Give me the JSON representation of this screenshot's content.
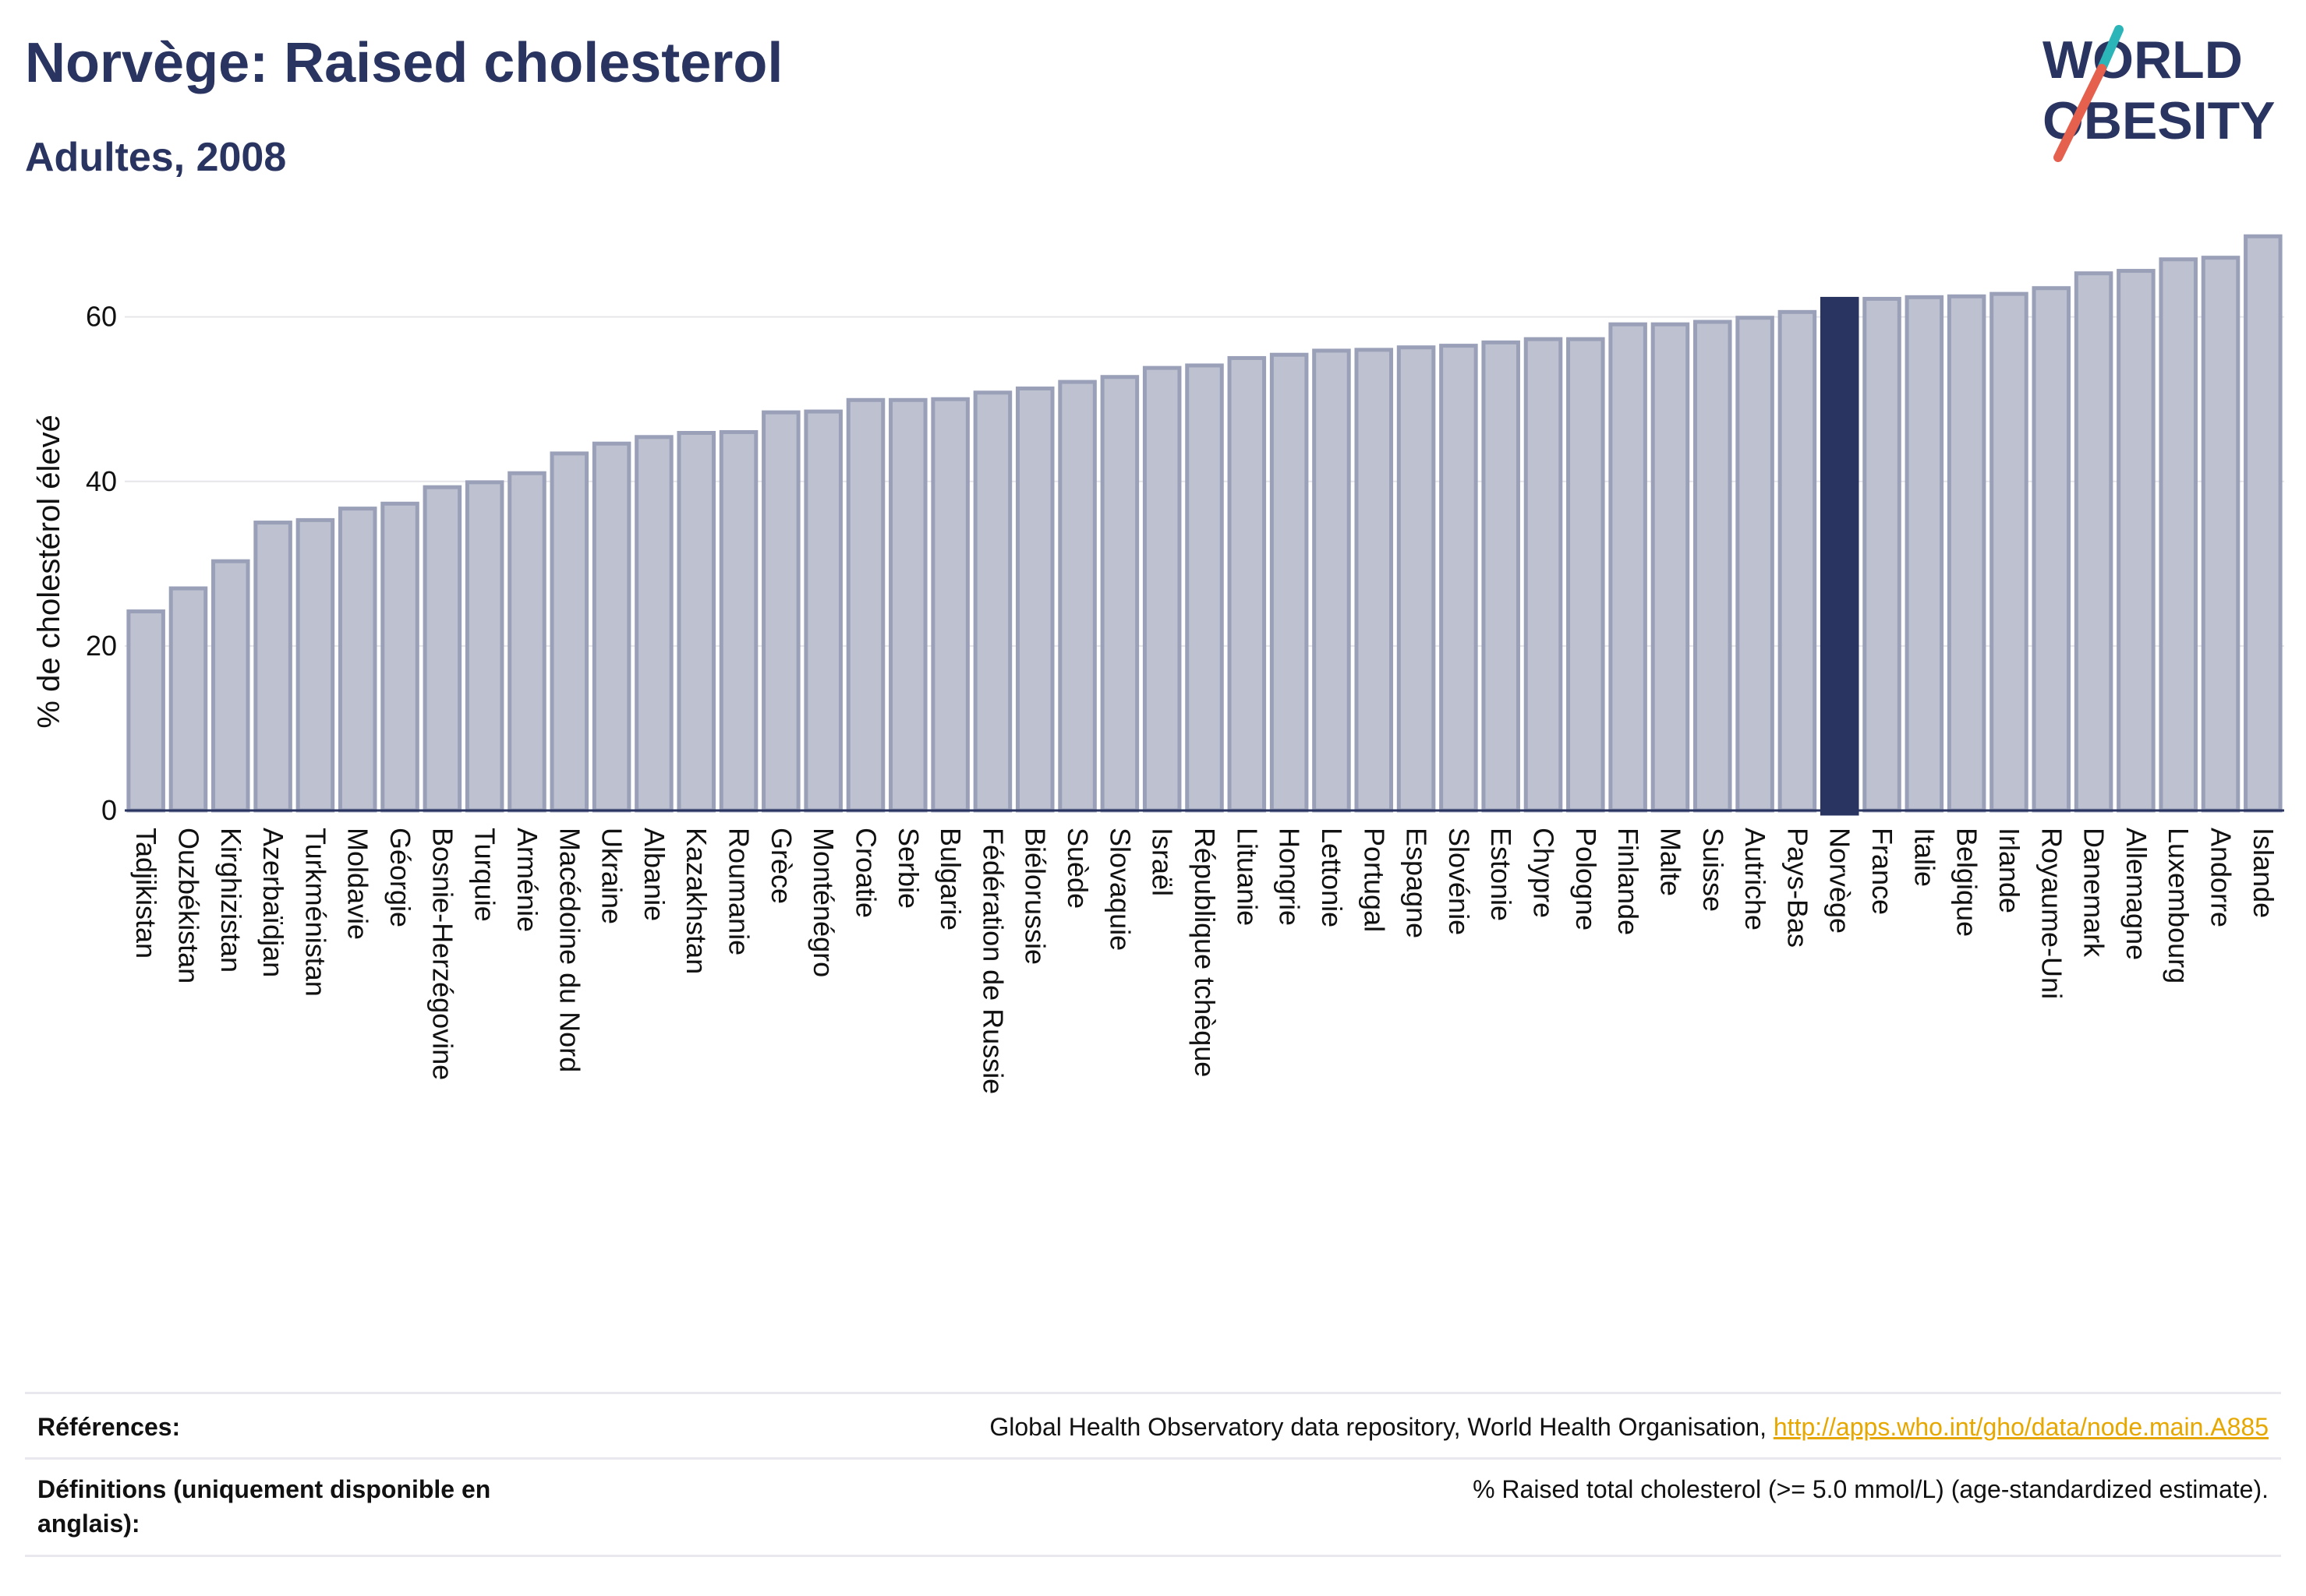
{
  "title": "Norvège: Raised cholesterol",
  "subtitle": "Adultes, 2008",
  "logo": {
    "line1": "WORLD",
    "line2": "OBESITY",
    "accent_teal": "#2bb5b8",
    "accent_red": "#e5604d"
  },
  "colors": {
    "bar_fill": "#bdc1d0",
    "bar_stroke": "#9aa0b8",
    "highlight": "#2a3461",
    "grid": "#e6e6ea"
  },
  "chart_data": {
    "type": "bar",
    "title": "Norvège: Raised cholesterol",
    "subtitle": "Adultes, 2008",
    "ylabel": "% de cholestérol élevé",
    "xlabel": "",
    "ylim": [
      0,
      72
    ],
    "yticks": [
      0,
      20,
      40,
      60
    ],
    "highlight": "Norvège",
    "categories": [
      "Tadjikistan",
      "Ouzbékistan",
      "Kirghizistan",
      "Azerbaïdjan",
      "Turkménistan",
      "Moldavie",
      "Géorgie",
      "Bosnie-Herzégovine",
      "Turquie",
      "Arménie",
      "Macédoine du Nord",
      "Ukraine",
      "Albanie",
      "Kazakhstan",
      "Roumanie",
      "Grèce",
      "Monténégro",
      "Croatie",
      "Serbie",
      "Bulgarie",
      "Fédération de Russie",
      "Biélorussie",
      "Suède",
      "Slovaquie",
      "Israël",
      "République tchèque",
      "Lituanie",
      "Hongrie",
      "Lettonie",
      "Portugal",
      "Espagne",
      "Slovénie",
      "Estonie",
      "Chypre",
      "Pologne",
      "Finlande",
      "Malte",
      "Suisse",
      "Autriche",
      "Pays-Bas",
      "Norvège",
      "France",
      "Italie",
      "Belgique",
      "Irlande",
      "Royaume-Uni",
      "Danemark",
      "Allemagne",
      "Luxembourg",
      "Andorre",
      "Islande"
    ],
    "values": [
      24.2,
      27.0,
      30.3,
      35.0,
      35.3,
      36.7,
      37.3,
      39.3,
      39.9,
      41.0,
      43.4,
      44.6,
      45.4,
      45.9,
      46.0,
      48.4,
      48.5,
      49.9,
      49.9,
      50.0,
      50.8,
      51.3,
      52.1,
      52.7,
      53.8,
      54.1,
      55.0,
      55.4,
      55.9,
      56.0,
      56.3,
      56.5,
      56.9,
      57.3,
      57.3,
      59.1,
      59.1,
      59.4,
      59.9,
      60.6,
      62.2,
      62.2,
      62.4,
      62.5,
      62.8,
      63.5,
      65.3,
      65.6,
      67.0,
      67.2,
      69.8
    ]
  },
  "footer": {
    "references_label": "Références:",
    "references_text": "Global Health Observatory data repository, World Health Organisation, ",
    "references_link": "http://apps.who.int/gho/data/node.main.A885",
    "definitions_label": "Définitions (uniquement disponible en anglais):",
    "definitions_text": "% Raised total cholesterol (>= 5.0 mmol/L) (age-standardized estimate)."
  }
}
